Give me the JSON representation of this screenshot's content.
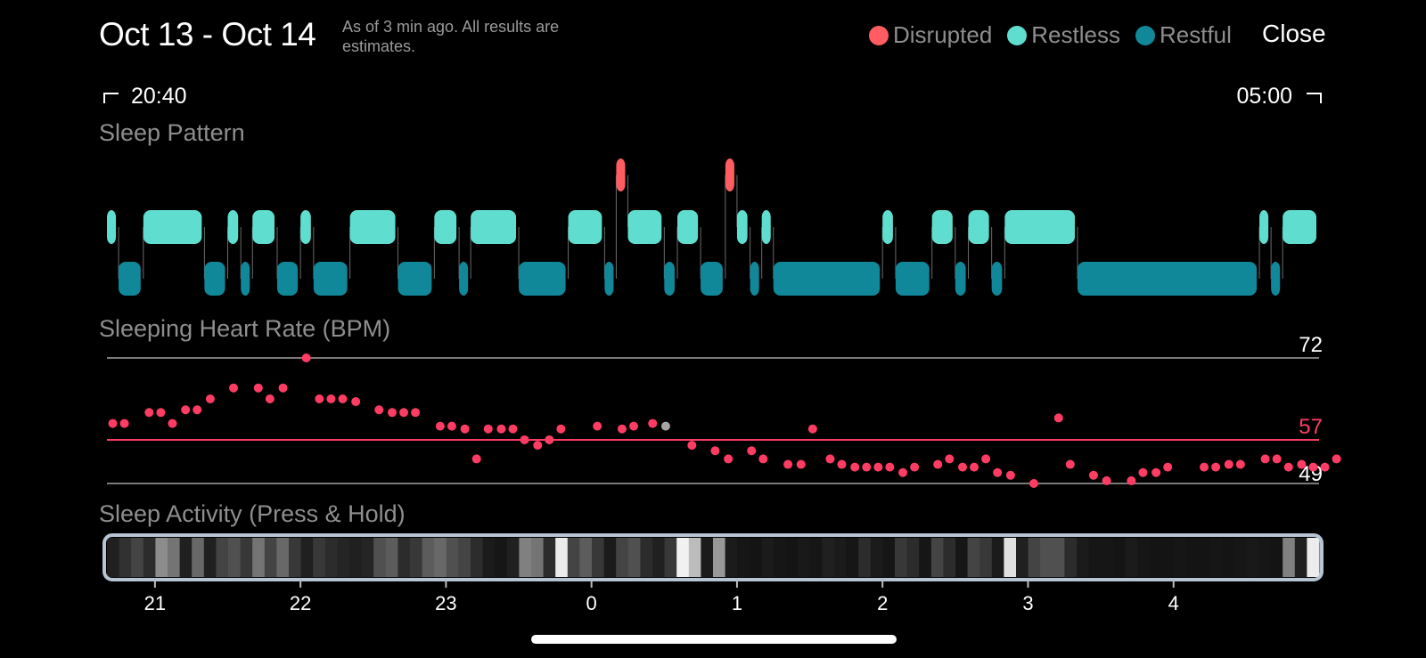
{
  "header": {
    "title": "Oct 13 - Oct 14",
    "subtitle": "As of 3 min ago. All results are estimates.",
    "close_label": "Close"
  },
  "legend": [
    {
      "label": "Disrupted",
      "color": "#ff5d61"
    },
    {
      "label": "Restless",
      "color": "#5fded0"
    },
    {
      "label": "Restful",
      "color": "#108899"
    }
  ],
  "time_range": {
    "start": "20:40",
    "end": "05:00"
  },
  "sections": {
    "sleep_pattern": "Sleep Pattern",
    "heart_rate": "Sleeping Heart Rate (BPM)",
    "activity": "Sleep Activity (Press & Hold)"
  },
  "chart_data": [
    {
      "type": "timeline",
      "name": "sleep-pattern",
      "x_unit": "hours since 20:40",
      "segments": [
        {
          "stage": "restless",
          "start": 0.0,
          "end": 0.08
        },
        {
          "stage": "restful",
          "start": 0.08,
          "end": 0.25
        },
        {
          "stage": "restless",
          "start": 0.25,
          "end": 0.67
        },
        {
          "stage": "restful",
          "start": 0.67,
          "end": 0.83
        },
        {
          "stage": "restless",
          "start": 0.83,
          "end": 0.92
        },
        {
          "stage": "restful",
          "start": 0.92,
          "end": 1.0
        },
        {
          "stage": "restless",
          "start": 1.0,
          "end": 1.17
        },
        {
          "stage": "restful",
          "start": 1.17,
          "end": 1.33
        },
        {
          "stage": "restless",
          "start": 1.33,
          "end": 1.42
        },
        {
          "stage": "restful",
          "start": 1.42,
          "end": 1.67
        },
        {
          "stage": "restless",
          "start": 1.67,
          "end": 2.0
        },
        {
          "stage": "restful",
          "start": 2.0,
          "end": 2.25
        },
        {
          "stage": "restless",
          "start": 2.25,
          "end": 2.42
        },
        {
          "stage": "restful",
          "start": 2.42,
          "end": 2.5
        },
        {
          "stage": "restless",
          "start": 2.5,
          "end": 2.83
        },
        {
          "stage": "restful",
          "start": 2.83,
          "end": 3.17
        },
        {
          "stage": "restless",
          "start": 3.17,
          "end": 3.42
        },
        {
          "stage": "restful",
          "start": 3.42,
          "end": 3.5
        },
        {
          "stage": "disrupted",
          "start": 3.5,
          "end": 3.58
        },
        {
          "stage": "restless",
          "start": 3.58,
          "end": 3.83
        },
        {
          "stage": "restful",
          "start": 3.83,
          "end": 3.92
        },
        {
          "stage": "restless",
          "start": 3.92,
          "end": 4.08
        },
        {
          "stage": "restful",
          "start": 4.08,
          "end": 4.25
        },
        {
          "stage": "disrupted",
          "start": 4.25,
          "end": 4.33
        },
        {
          "stage": "restless",
          "start": 4.33,
          "end": 4.42
        },
        {
          "stage": "restful",
          "start": 4.42,
          "end": 4.5
        },
        {
          "stage": "restless",
          "start": 4.5,
          "end": 4.58
        },
        {
          "stage": "restful",
          "start": 4.58,
          "end": 5.33
        },
        {
          "stage": "restless",
          "start": 5.33,
          "end": 5.42
        },
        {
          "stage": "restful",
          "start": 5.42,
          "end": 5.67
        },
        {
          "stage": "restless",
          "start": 5.67,
          "end": 5.83
        },
        {
          "stage": "restful",
          "start": 5.83,
          "end": 5.92
        },
        {
          "stage": "restless",
          "start": 5.92,
          "end": 6.08
        },
        {
          "stage": "restful",
          "start": 6.08,
          "end": 6.17
        },
        {
          "stage": "restless",
          "start": 6.17,
          "end": 6.67
        },
        {
          "stage": "restful",
          "start": 6.67,
          "end": 7.92
        },
        {
          "stage": "restless",
          "start": 7.92,
          "end": 8.0
        },
        {
          "stage": "restful",
          "start": 8.0,
          "end": 8.08
        },
        {
          "stage": "restless",
          "start": 8.08,
          "end": 8.33
        }
      ]
    },
    {
      "type": "scatter",
      "name": "sleeping-heart-rate",
      "ylabel": "Sleeping Heart Rate (BPM)",
      "y_max": 72,
      "y_avg": 57,
      "y_min": 49,
      "ylim": [
        49,
        72
      ],
      "points": [
        [
          0.04,
          60
        ],
        [
          0.12,
          60
        ],
        [
          0.29,
          62
        ],
        [
          0.37,
          62
        ],
        [
          0.45,
          60
        ],
        [
          0.54,
          62.5
        ],
        [
          0.62,
          62.5
        ],
        [
          0.71,
          64.5
        ],
        [
          0.87,
          66.5
        ],
        [
          1.04,
          66.5
        ],
        [
          1.12,
          64.5
        ],
        [
          1.21,
          66.5
        ],
        [
          1.37,
          72
        ],
        [
          1.46,
          64.5
        ],
        [
          1.54,
          64.5
        ],
        [
          1.62,
          64.5
        ],
        [
          1.71,
          64
        ],
        [
          1.87,
          62.5
        ],
        [
          1.96,
          62
        ],
        [
          2.04,
          62
        ],
        [
          2.12,
          62
        ],
        [
          2.29,
          59.5
        ],
        [
          2.37,
          59.5
        ],
        [
          2.46,
          59
        ],
        [
          2.54,
          53.5
        ],
        [
          2.62,
          59
        ],
        [
          2.71,
          59
        ],
        [
          2.79,
          59
        ],
        [
          2.87,
          57
        ],
        [
          2.96,
          56
        ],
        [
          3.04,
          57
        ],
        [
          3.12,
          59
        ],
        [
          3.37,
          59.5
        ],
        [
          3.54,
          59
        ],
        [
          3.62,
          59.5
        ],
        [
          3.75,
          60
        ],
        [
          3.84,
          59.5
        ],
        [
          4.02,
          56
        ],
        [
          4.18,
          55
        ],
        [
          4.27,
          53.5
        ],
        [
          4.43,
          55
        ],
        [
          4.51,
          53.5
        ],
        [
          4.68,
          52.5
        ],
        [
          4.77,
          52.5
        ],
        [
          4.85,
          59
        ],
        [
          4.97,
          53.5
        ],
        [
          5.05,
          52.5
        ],
        [
          5.14,
          52
        ],
        [
          5.22,
          52
        ],
        [
          5.3,
          52
        ],
        [
          5.38,
          52
        ],
        [
          5.47,
          51
        ],
        [
          5.55,
          52
        ],
        [
          5.71,
          52.5
        ],
        [
          5.79,
          53.5
        ],
        [
          5.88,
          52
        ],
        [
          5.96,
          52
        ],
        [
          6.04,
          53.5
        ],
        [
          6.12,
          51
        ],
        [
          6.21,
          50.5
        ],
        [
          6.37,
          49
        ],
        [
          6.54,
          61
        ],
        [
          6.62,
          52.5
        ],
        [
          6.78,
          50.5
        ],
        [
          6.87,
          49.5
        ],
        [
          7.04,
          49.5
        ],
        [
          7.12,
          51
        ],
        [
          7.21,
          51
        ],
        [
          7.29,
          52
        ],
        [
          7.54,
          52
        ],
        [
          7.62,
          52
        ],
        [
          7.71,
          52.5
        ],
        [
          7.79,
          52.5
        ],
        [
          7.96,
          53.5
        ],
        [
          8.04,
          53.5
        ],
        [
          8.12,
          52
        ],
        [
          8.21,
          52.5
        ],
        [
          8.29,
          52
        ],
        [
          8.37,
          52
        ],
        [
          8.45,
          53.5
        ]
      ],
      "highlight_index": 36,
      "colors": {
        "points": "#ff3c64",
        "avg_line": "#ff3c64",
        "highlight": "#a6a6a6"
      }
    },
    {
      "type": "heatmap",
      "name": "sleep-activity",
      "x_unit": "hours since 20:40",
      "x_ticks": [
        {
          "label": "21",
          "x": 0.33
        },
        {
          "label": "22",
          "x": 1.33
        },
        {
          "label": "23",
          "x": 2.33
        },
        {
          "label": "0",
          "x": 3.33
        },
        {
          "label": "1",
          "x": 4.33
        },
        {
          "label": "2",
          "x": 5.33
        },
        {
          "label": "3",
          "x": 6.33
        },
        {
          "label": "4",
          "x": 7.33
        }
      ],
      "intensity": [
        0.1,
        0.17,
        0.25,
        0.15,
        0.55,
        0.45,
        0.1,
        0.4,
        0.1,
        0.25,
        0.3,
        0.2,
        0.45,
        0.25,
        0.4,
        0.2,
        0.1,
        0.2,
        0.15,
        0.12,
        0.1,
        0.12,
        0.3,
        0.35,
        0.15,
        0.2,
        0.35,
        0.4,
        0.3,
        0.25,
        0.15,
        0.08,
        0.06,
        0.1,
        0.5,
        0.45,
        0.15,
        0.95,
        0.25,
        0.35,
        0.2,
        0.08,
        0.25,
        0.3,
        0.15,
        0.1,
        0.2,
        0.97,
        0.75,
        0.08,
        0.6,
        0.08,
        0.06,
        0.05,
        0.08,
        0.06,
        0.05,
        0.07,
        0.06,
        0.1,
        0.08,
        0.06,
        0.15,
        0.08,
        0.06,
        0.2,
        0.15,
        0.06,
        0.25,
        0.15,
        0.06,
        0.25,
        0.2,
        0.08,
        0.9,
        0.1,
        0.25,
        0.3,
        0.3,
        0.15,
        0.08,
        0.06,
        0.06,
        0.05,
        0.08,
        0.06,
        0.05,
        0.05,
        0.06,
        0.05,
        0.05,
        0.06,
        0.05,
        0.06,
        0.07,
        0.06,
        0.05,
        0.5,
        0.1,
        0.95
      ]
    }
  ]
}
